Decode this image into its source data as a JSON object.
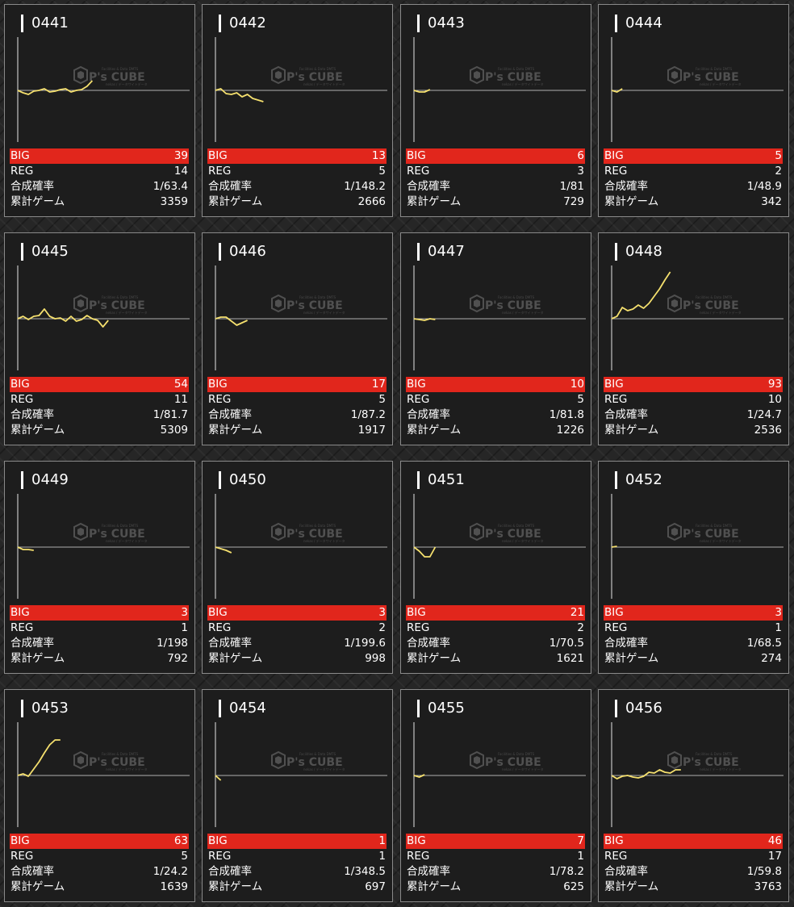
{
  "watermark": {
    "brand": "P's CUBE",
    "top": "Facilities & Data DMTS",
    "bottom": "nekas / データサイトデータ"
  },
  "colors": {
    "line": "#f5e06e",
    "big_bar": "#e1261c",
    "card_bg": "#1d1d1d"
  },
  "labels": {
    "big": "BIG",
    "reg": "REG",
    "prob": "合成確率",
    "games": "累計ゲーム"
  },
  "machines": [
    {
      "id": "0441",
      "big": "39",
      "reg": "14",
      "prob": "1/63.4",
      "games": "3359",
      "trend": [
        0,
        -3,
        -5,
        -1,
        0,
        2,
        -2,
        -1,
        1,
        2,
        -2,
        0,
        1,
        5,
        12
      ]
    },
    {
      "id": "0442",
      "big": "13",
      "reg": "5",
      "prob": "1/148.2",
      "games": "2666",
      "trend": [
        0,
        2,
        -4,
        -5,
        -3,
        -8,
        -5,
        -10,
        -12,
        -14
      ]
    },
    {
      "id": "0443",
      "big": "6",
      "reg": "3",
      "prob": "1/81",
      "games": "729",
      "trend": [
        0,
        -2,
        -2,
        1
      ]
    },
    {
      "id": "0444",
      "big": "5",
      "reg": "2",
      "prob": "1/48.9",
      "games": "342",
      "trend": [
        0,
        -2,
        2
      ]
    },
    {
      "id": "0445",
      "big": "54",
      "reg": "11",
      "prob": "1/81.7",
      "games": "5309",
      "trend": [
        0,
        3,
        -1,
        3,
        4,
        12,
        3,
        0,
        1,
        -3,
        3,
        -3,
        -1,
        4,
        0,
        -2,
        -10,
        -2
      ]
    },
    {
      "id": "0446",
      "big": "17",
      "reg": "5",
      "prob": "1/87.2",
      "games": "1917",
      "trend": [
        0,
        2,
        2,
        -3,
        -8,
        -5,
        -2
      ]
    },
    {
      "id": "0447",
      "big": "10",
      "reg": "5",
      "prob": "1/81.8",
      "games": "1226",
      "trend": [
        0,
        -1,
        -2,
        0,
        -1
      ]
    },
    {
      "id": "0448",
      "big": "93",
      "reg": "10",
      "prob": "1/24.7",
      "games": "2536",
      "trend": [
        0,
        3,
        14,
        10,
        12,
        17,
        13,
        19,
        28,
        37,
        48,
        58
      ]
    },
    {
      "id": "0449",
      "big": "3",
      "reg": "1",
      "prob": "1/198",
      "games": "792",
      "trend": [
        0,
        -3,
        -3,
        -4
      ]
    },
    {
      "id": "0450",
      "big": "3",
      "reg": "2",
      "prob": "1/199.6",
      "games": "998",
      "trend": [
        0,
        -2,
        -4,
        -7
      ]
    },
    {
      "id": "0451",
      "big": "21",
      "reg": "2",
      "prob": "1/70.5",
      "games": "1621",
      "trend": [
        0,
        -5,
        -12,
        -12,
        0
      ]
    },
    {
      "id": "0452",
      "big": "3",
      "reg": "1",
      "prob": "1/68.5",
      "games": "274",
      "trend": [
        0,
        1
      ]
    },
    {
      "id": "0453",
      "big": "63",
      "reg": "5",
      "prob": "1/24.2",
      "games": "1639",
      "trend": [
        0,
        2,
        -1,
        8,
        17,
        28,
        38,
        44,
        44
      ]
    },
    {
      "id": "0454",
      "big": "1",
      "reg": "1",
      "prob": "1/348.5",
      "games": "697",
      "trend": [
        0,
        -6
      ]
    },
    {
      "id": "0455",
      "big": "7",
      "reg": "1",
      "prob": "1/78.2",
      "games": "625",
      "trend": [
        0,
        -2,
        1
      ]
    },
    {
      "id": "0456",
      "big": "46",
      "reg": "17",
      "prob": "1/59.8",
      "games": "3763",
      "trend": [
        0,
        -4,
        -1,
        0,
        -2,
        -3,
        -1,
        4,
        3,
        7,
        4,
        3,
        7,
        7
      ]
    }
  ]
}
